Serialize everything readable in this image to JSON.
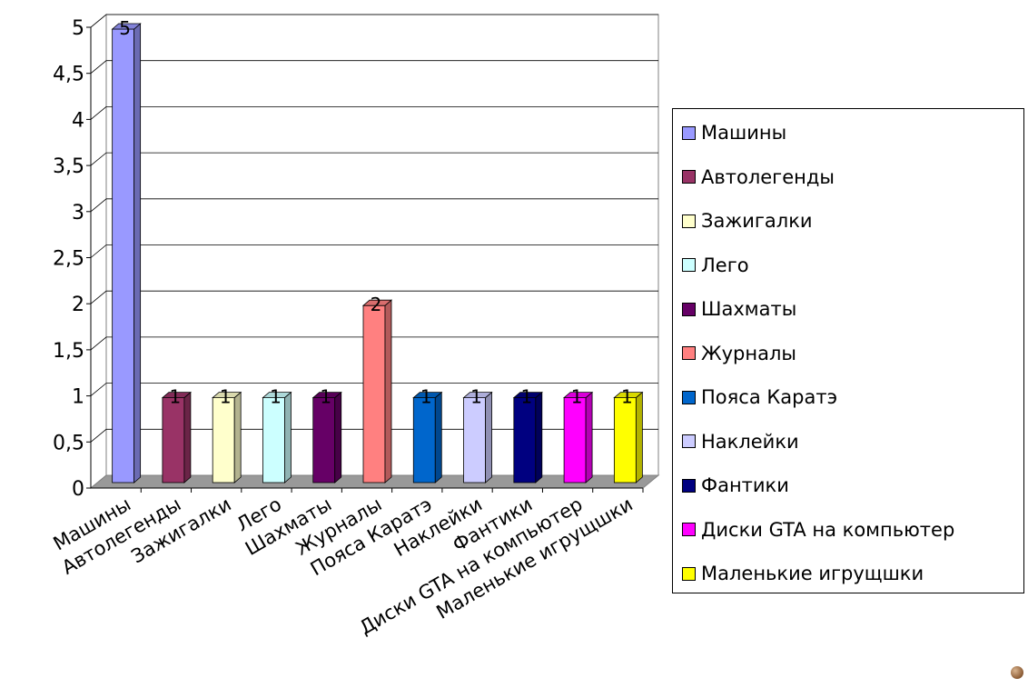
{
  "chart_data": {
    "type": "bar",
    "categories": [
      "Машины",
      "Автолегенды",
      "Зажигалки",
      "Лего",
      "Шахматы",
      "Журналы",
      "Пояса Каратэ",
      "Наклейки",
      "Фантики",
      "Диски GTA на компьютер",
      "Маленькие игрущшки"
    ],
    "values": [
      5,
      1,
      1,
      1,
      1,
      2,
      1,
      1,
      1,
      1,
      1
    ],
    "data_labels": [
      "5",
      "1",
      "1",
      "1",
      "1",
      "2",
      "1",
      "1",
      "1",
      "1",
      "1"
    ],
    "colors": [
      "#9999ff",
      "#993366",
      "#ffffcc",
      "#ccffff",
      "#660066",
      "#ff8080",
      "#0066cc",
      "#ccccff",
      "#000080",
      "#ff00ff",
      "#ffff00"
    ],
    "y_ticks": [
      "0",
      "0,5",
      "1",
      "1,5",
      "2",
      "2,5",
      "3",
      "3,5",
      "4",
      "4,5",
      "5"
    ],
    "ylim": [
      0,
      5
    ],
    "grid": true,
    "legend_position": "right",
    "style": "3d"
  }
}
